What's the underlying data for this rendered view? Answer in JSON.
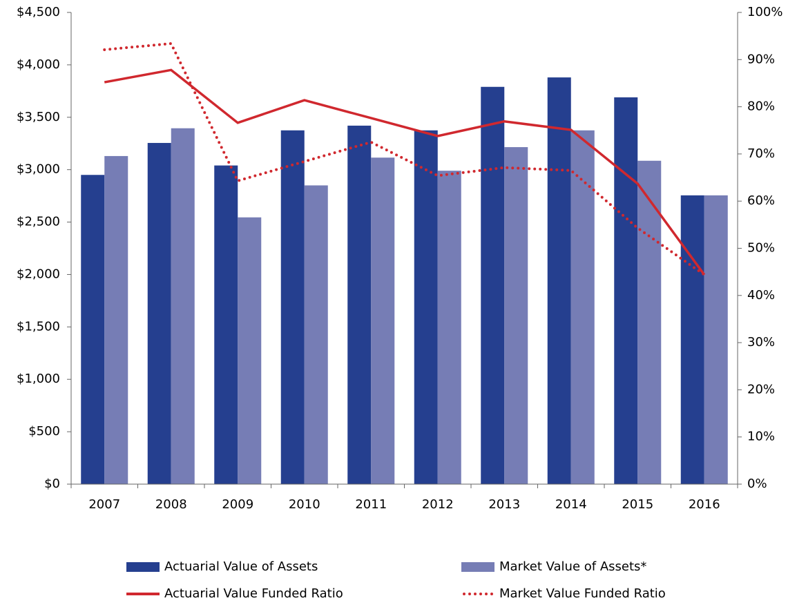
{
  "chart_data": {
    "type": "bar",
    "categories": [
      "2007",
      "2008",
      "2009",
      "2010",
      "2011",
      "2012",
      "2013",
      "2014",
      "2015",
      "2016"
    ],
    "series": [
      {
        "name": "Actuarial Value of Assets",
        "type": "bar",
        "color": "#253f8f",
        "values": [
          2950,
          3255,
          3040,
          3375,
          3420,
          3375,
          3790,
          3880,
          3690,
          2755
        ]
      },
      {
        "name": "Market Value of Assets*",
        "type": "bar",
        "color": "#767db5",
        "values": [
          3130,
          3395,
          2545,
          2850,
          3115,
          2990,
          3215,
          3375,
          3085,
          2755
        ]
      },
      {
        "name": "Actuarial Value Funded Ratio",
        "type": "line",
        "axis": "y2",
        "line_style": "solid",
        "color": "#d0282e",
        "values": [
          85.2,
          87.8,
          76.6,
          81.4,
          77.6,
          73.8,
          76.9,
          75.1,
          63.7,
          44.4
        ]
      },
      {
        "name": "Market Value Funded Ratio",
        "type": "line",
        "axis": "y2",
        "line_style": "dotted",
        "color": "#d0282e",
        "values": [
          92.1,
          93.4,
          64.3,
          68.4,
          72.5,
          65.4,
          67.1,
          66.5,
          54.3,
          44.4
        ]
      }
    ],
    "ylim": [
      0,
      4500
    ],
    "yticks": [
      {
        "value": 0,
        "label": "$0"
      },
      {
        "value": 500,
        "label": "$500"
      },
      {
        "value": 1000,
        "label": "$1,000"
      },
      {
        "value": 1500,
        "label": "$1,500"
      },
      {
        "value": 2000,
        "label": "$2,000"
      },
      {
        "value": 2500,
        "label": "$2,500"
      },
      {
        "value": 3000,
        "label": "$3,000"
      },
      {
        "value": 3500,
        "label": "$3,500"
      },
      {
        "value": 4000,
        "label": "$4,000"
      },
      {
        "value": 4500,
        "label": "$4,500"
      }
    ],
    "y2lim": [
      0,
      100
    ],
    "y2ticks": [
      {
        "value": 0,
        "label": "0%"
      },
      {
        "value": 10,
        "label": "10%"
      },
      {
        "value": 20,
        "label": "20%"
      },
      {
        "value": 30,
        "label": "30%"
      },
      {
        "value": 40,
        "label": "40%"
      },
      {
        "value": 50,
        "label": "50%"
      },
      {
        "value": 60,
        "label": "60%"
      },
      {
        "value": 70,
        "label": "70%"
      },
      {
        "value": 80,
        "label": "80%"
      },
      {
        "value": 90,
        "label": "90%"
      },
      {
        "value": 100,
        "label": "100%"
      }
    ],
    "grid": false,
    "legend": "bottom"
  }
}
